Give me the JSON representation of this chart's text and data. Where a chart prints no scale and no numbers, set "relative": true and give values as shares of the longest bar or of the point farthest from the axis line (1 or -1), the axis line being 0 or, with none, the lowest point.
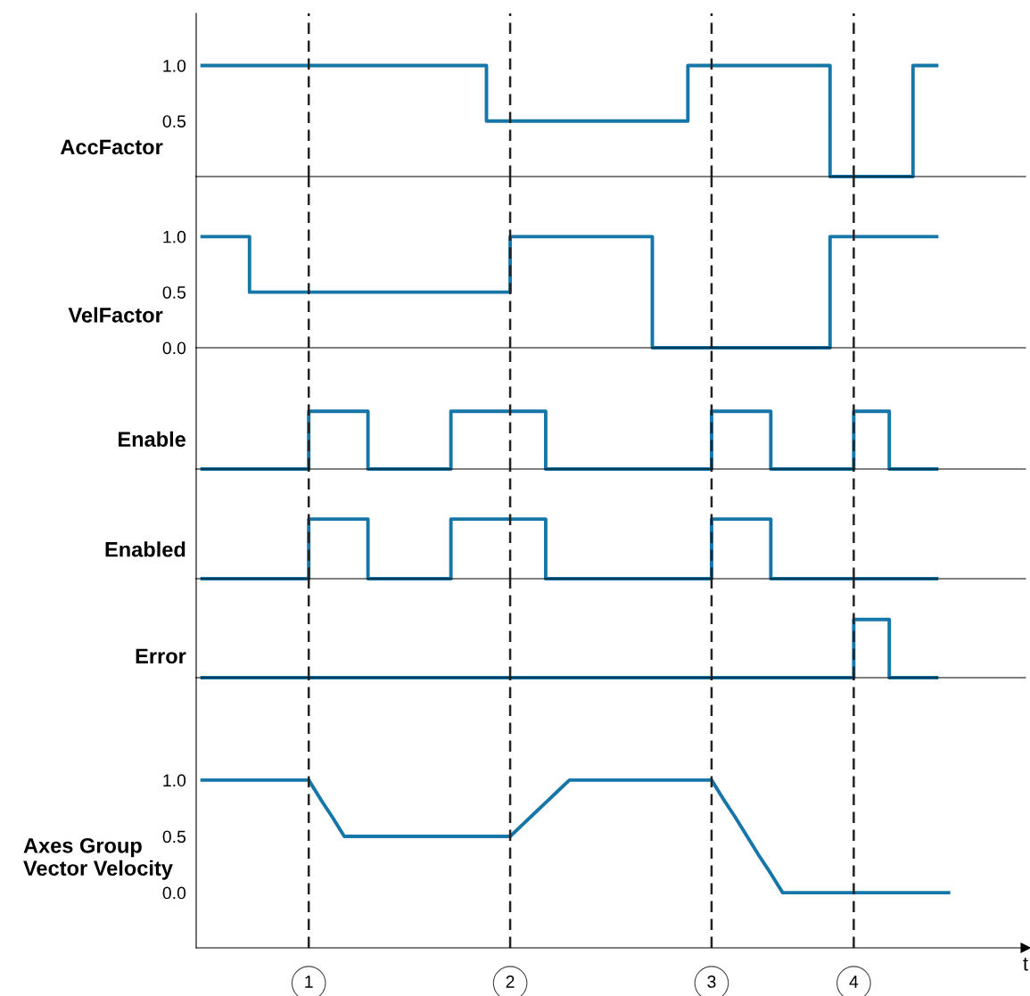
{
  "chart_data": [
    {
      "type": "step",
      "ylabel": "AccFactor",
      "ylim": [
        0,
        1.47
      ],
      "yticks": [
        {
          "value": 0.5,
          "label": "0.5"
        },
        {
          "value": 1,
          "label": "1.0"
        }
      ],
      "tick_labels": "y",
      "color": "#1776a8",
      "categories": [
        null,
        null,
        null,
        null,
        null,
        null,
        null,
        null,
        null,
        "1",
        null,
        null,
        null,
        null,
        null,
        null,
        null,
        null,
        null,
        null,
        null,
        null,
        null,
        null,
        null,
        null,
        "2",
        null,
        null,
        null,
        null,
        null,
        null,
        null,
        null,
        null,
        null,
        null,
        null,
        null,
        null,
        null,
        null,
        "3",
        null,
        null,
        null,
        null,
        null,
        null,
        null,
        null,
        null,
        null,
        null,
        "4",
        null,
        null,
        null,
        null,
        null,
        null,
        null,
        null,
        null,
        null,
        null,
        null,
        null,
        null
      ],
      "values": [
        1,
        1,
        1,
        1,
        1,
        1,
        1,
        1,
        1,
        1,
        1,
        1,
        1,
        1,
        1,
        1,
        1,
        1,
        1,
        1,
        1,
        1,
        1,
        1,
        0.5,
        0.5,
        0.5,
        0.5,
        0.5,
        0.5,
        0.5,
        0.5,
        0.5,
        0.5,
        0.5,
        0.5,
        0.5,
        0.5,
        0.5,
        0.5,
        0.5,
        1,
        1,
        1,
        1,
        1,
        1,
        1,
        1,
        1,
        1,
        1,
        1,
        0,
        0,
        0,
        0,
        0,
        0,
        0,
        1,
        1,
        1,
        null,
        null,
        null,
        null,
        null,
        null,
        null
      ],
      "ref_lines": [
        {
          "axis": "x",
          "value": "1"
        },
        {
          "axis": "x",
          "value": "2"
        },
        {
          "axis": "x",
          "value": "3"
        },
        {
          "axis": "x",
          "value": "4"
        }
      ]
    },
    {
      "type": "step",
      "ylabel": "VelFactor",
      "ylim": [
        0,
        1.54
      ],
      "yticks": [
        {
          "value": 0,
          "label": "0.0"
        },
        {
          "value": 0.5,
          "label": "0.5"
        },
        {
          "value": 1,
          "label": "1.0"
        }
      ],
      "tick_labels": "y",
      "color": "#1776a8",
      "categories": [
        null,
        null,
        null,
        null,
        null,
        null,
        null,
        null,
        null,
        "1",
        null,
        null,
        null,
        null,
        null,
        null,
        null,
        null,
        null,
        null,
        null,
        null,
        null,
        null,
        null,
        null,
        "2",
        null,
        null,
        null,
        null,
        null,
        null,
        null,
        null,
        null,
        null,
        null,
        null,
        null,
        null,
        null,
        null,
        "3",
        null,
        null,
        null,
        null,
        null,
        null,
        null,
        null,
        null,
        null,
        null,
        "4",
        null,
        null,
        null,
        null,
        null,
        null,
        null,
        null,
        null,
        null,
        null,
        null,
        null,
        null
      ],
      "values": [
        1,
        1,
        1,
        1,
        0.5,
        0.5,
        0.5,
        0.5,
        0.5,
        0.5,
        0.5,
        0.5,
        0.5,
        0.5,
        0.5,
        0.5,
        0.5,
        0.5,
        0.5,
        0.5,
        0.5,
        0.5,
        0.5,
        0.5,
        0.5,
        0.5,
        1,
        1,
        1,
        1,
        1,
        1,
        1,
        1,
        1,
        1,
        1,
        1,
        0,
        0,
        0,
        0,
        0,
        0,
        0,
        0,
        0,
        0,
        0,
        0,
        0,
        0,
        0,
        1,
        1,
        1,
        1,
        1,
        1,
        1,
        1,
        1,
        1,
        null,
        null,
        null,
        null,
        null,
        null,
        null
      ],
      "ref_lines": [
        {
          "axis": "x",
          "value": "1"
        },
        {
          "axis": "x",
          "value": "2"
        },
        {
          "axis": "x",
          "value": "3"
        },
        {
          "axis": "x",
          "value": "4"
        }
      ]
    },
    {
      "type": "step",
      "ylabel": "Enable",
      "relative": true,
      "tick_labels": false,
      "color": "#1776a8",
      "categories": [
        null,
        null,
        null,
        null,
        null,
        null,
        null,
        null,
        null,
        "1",
        null,
        null,
        null,
        null,
        null,
        null,
        null,
        null,
        null,
        null,
        null,
        null,
        null,
        null,
        null,
        null,
        "2",
        null,
        null,
        null,
        null,
        null,
        null,
        null,
        null,
        null,
        null,
        null,
        null,
        null,
        null,
        null,
        null,
        "3",
        null,
        null,
        null,
        null,
        null,
        null,
        null,
        null,
        null,
        null,
        null,
        "4",
        null,
        null,
        null,
        null,
        null,
        null,
        null,
        null,
        null,
        null,
        null,
        null,
        null,
        null
      ],
      "values": [
        0,
        0,
        0,
        0,
        0,
        0,
        0,
        0,
        0,
        1,
        1,
        1,
        1,
        1,
        0,
        0,
        0,
        0,
        0,
        0,
        0,
        1,
        1,
        1,
        1,
        1,
        1,
        1,
        1,
        0,
        0,
        0,
        0,
        0,
        0,
        0,
        0,
        0,
        0,
        0,
        0,
        0,
        0,
        1,
        1,
        1,
        1,
        1,
        0,
        0,
        0,
        0,
        0,
        0,
        0,
        1,
        1,
        1,
        0,
        0,
        0,
        0,
        0,
        null,
        null,
        null,
        null,
        null,
        null,
        null
      ],
      "ref_lines": [
        {
          "axis": "x",
          "value": "1"
        },
        {
          "axis": "x",
          "value": "2"
        },
        {
          "axis": "x",
          "value": "3"
        },
        {
          "axis": "x",
          "value": "4"
        }
      ]
    },
    {
      "type": "step",
      "ylabel": "Enabled",
      "relative": true,
      "tick_labels": false,
      "color": "#1776a8",
      "categories": [
        null,
        null,
        null,
        null,
        null,
        null,
        null,
        null,
        null,
        "1",
        null,
        null,
        null,
        null,
        null,
        null,
        null,
        null,
        null,
        null,
        null,
        null,
        null,
        null,
        null,
        null,
        "2",
        null,
        null,
        null,
        null,
        null,
        null,
        null,
        null,
        null,
        null,
        null,
        null,
        null,
        null,
        null,
        null,
        "3",
        null,
        null,
        null,
        null,
        null,
        null,
        null,
        null,
        null,
        null,
        null,
        "4",
        null,
        null,
        null,
        null,
        null,
        null,
        null,
        null,
        null,
        null,
        null,
        null,
        null,
        null
      ],
      "values": [
        0,
        0,
        0,
        0,
        0,
        0,
        0,
        0,
        0,
        1,
        1,
        1,
        1,
        1,
        0,
        0,
        0,
        0,
        0,
        0,
        0,
        1,
        1,
        1,
        1,
        1,
        1,
        1,
        1,
        0,
        0,
        0,
        0,
        0,
        0,
        0,
        0,
        0,
        0,
        0,
        0,
        0,
        0,
        1,
        1,
        1,
        1,
        1,
        0,
        0,
        0,
        0,
        0,
        0,
        0,
        0,
        0,
        0,
        0,
        0,
        0,
        0,
        0,
        null,
        null,
        null,
        null,
        null,
        null,
        null
      ],
      "ref_lines": [
        {
          "axis": "x",
          "value": "1"
        },
        {
          "axis": "x",
          "value": "2"
        },
        {
          "axis": "x",
          "value": "3"
        },
        {
          "axis": "x",
          "value": "4"
        }
      ]
    },
    {
      "type": "step",
      "ylabel": "Error",
      "relative": true,
      "tick_labels": false,
      "color": "#1776a8",
      "categories": [
        null,
        null,
        null,
        null,
        null,
        null,
        null,
        null,
        null,
        "1",
        null,
        null,
        null,
        null,
        null,
        null,
        null,
        null,
        null,
        null,
        null,
        null,
        null,
        null,
        null,
        null,
        "2",
        null,
        null,
        null,
        null,
        null,
        null,
        null,
        null,
        null,
        null,
        null,
        null,
        null,
        null,
        null,
        null,
        "3",
        null,
        null,
        null,
        null,
        null,
        null,
        null,
        null,
        null,
        null,
        null,
        "4",
        null,
        null,
        null,
        null,
        null,
        null,
        null,
        null,
        null,
        null,
        null,
        null,
        null,
        null
      ],
      "values": [
        0,
        0,
        0,
        0,
        0,
        0,
        0,
        0,
        0,
        0,
        0,
        0,
        0,
        0,
        0,
        0,
        0,
        0,
        0,
        0,
        0,
        0,
        0,
        0,
        0,
        0,
        0,
        0,
        0,
        0,
        0,
        0,
        0,
        0,
        0,
        0,
        0,
        0,
        0,
        0,
        0,
        0,
        0,
        0,
        0,
        0,
        0,
        0,
        0,
        0,
        0,
        0,
        0,
        0,
        0,
        1,
        1,
        1,
        0,
        0,
        0,
        0,
        0,
        null,
        null,
        null,
        null,
        null,
        null,
        null
      ],
      "ref_lines": [
        {
          "axis": "x",
          "value": "1"
        },
        {
          "axis": "x",
          "value": "2"
        },
        {
          "axis": "x",
          "value": "3"
        },
        {
          "axis": "x",
          "value": "4"
        }
      ]
    },
    {
      "type": "line",
      "ylabel": "Axes Group\nVector Velocity",
      "xlabel": "t",
      "ylim": [
        -0.49,
        1.91
      ],
      "yticks": [
        {
          "value": 0,
          "label": "0.0"
        },
        {
          "value": 0.5,
          "label": "0.5"
        },
        {
          "value": 1,
          "label": "1.0"
        }
      ],
      "color": "#1776a8",
      "categories": [
        null,
        null,
        null,
        null,
        null,
        null,
        null,
        null,
        null,
        "1",
        null,
        null,
        null,
        null,
        null,
        null,
        null,
        null,
        null,
        null,
        null,
        null,
        null,
        null,
        null,
        null,
        "2",
        null,
        null,
        null,
        null,
        null,
        null,
        null,
        null,
        null,
        null,
        null,
        null,
        null,
        null,
        null,
        null,
        "3",
        null,
        null,
        null,
        null,
        null,
        null,
        null,
        null,
        null,
        null,
        null,
        "4",
        null,
        null,
        null,
        null,
        null,
        null,
        null,
        null,
        null,
        null,
        null,
        null,
        null,
        null
      ],
      "values": [
        1,
        1,
        1,
        1,
        1,
        1,
        1,
        1,
        1,
        1,
        0.83,
        0.67,
        0.5,
        0.5,
        0.5,
        0.5,
        0.5,
        0.5,
        0.5,
        0.5,
        0.5,
        0.5,
        0.5,
        0.5,
        0.5,
        0.5,
        0.5,
        0.6,
        0.7,
        0.8,
        0.9,
        1,
        1,
        1,
        1,
        1,
        1,
        1,
        1,
        1,
        1,
        1,
        1,
        1,
        0.83,
        0.67,
        0.5,
        0.33,
        0.17,
        0,
        0,
        0,
        0,
        0,
        0,
        0,
        0,
        0,
        0,
        0,
        0,
        0,
        0,
        0,
        null,
        null,
        null,
        null,
        null,
        null
      ],
      "ref_lines": [
        {
          "axis": "x",
          "value": "1"
        },
        {
          "axis": "x",
          "value": "2"
        },
        {
          "axis": "x",
          "value": "3"
        },
        {
          "axis": "x",
          "value": "4"
        }
      ]
    }
  ]
}
